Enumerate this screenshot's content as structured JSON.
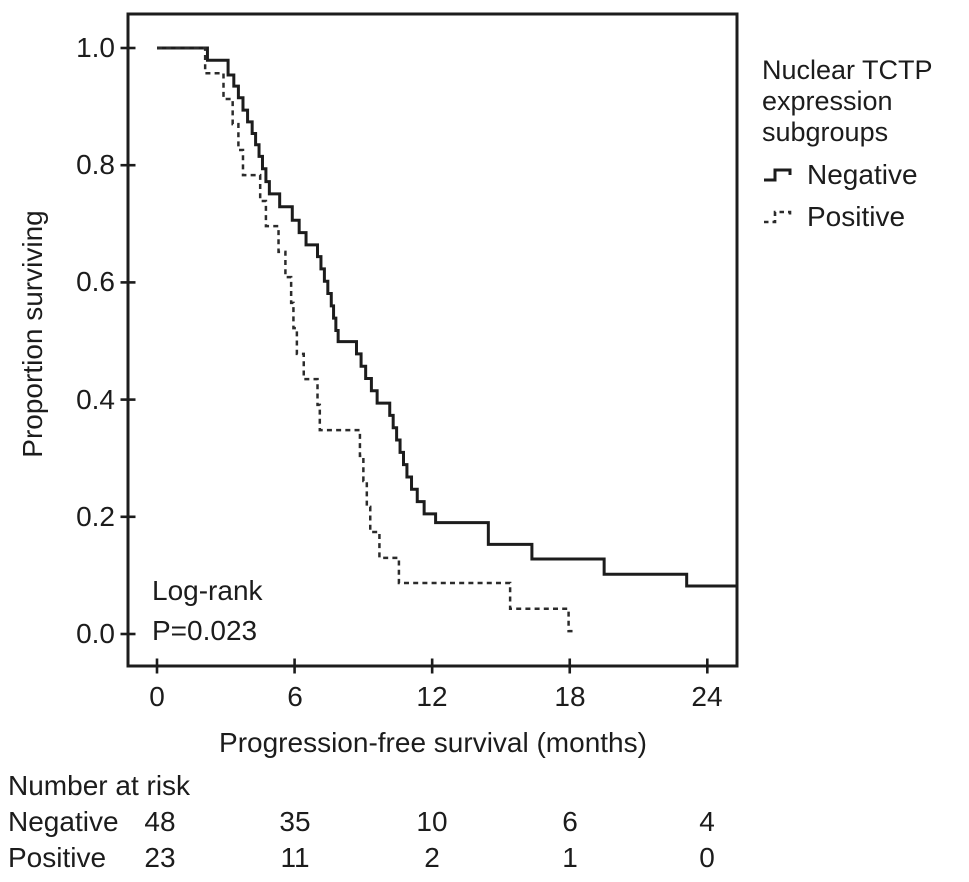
{
  "page": {
    "background": "#ffffff",
    "text_color": "#1c1c1c",
    "line_color": "#1c1c1c"
  },
  "chart_data": {
    "type": "line",
    "variant": "kaplan_meier_step",
    "xlabel": "Progression-free survival (months)",
    "ylabel": "Proportion surviving",
    "xlim": [
      0,
      24
    ],
    "ylim": [
      0.0,
      1.0
    ],
    "grid": false,
    "xticks": [
      0,
      6,
      12,
      18,
      24
    ],
    "xtick_labels": [
      "0",
      "6",
      "12",
      "18",
      "24"
    ],
    "ytick_values": [
      1.0,
      0.8,
      0.6,
      0.4,
      0.2,
      0.0
    ],
    "ytick_labels": [
      "1.0",
      "0.8",
      "0.6",
      "0.4",
      "0.2",
      "0.0"
    ],
    "annotation": {
      "line1": "Log-rank",
      "line2": "P=0.023"
    },
    "legend": {
      "position": "right-outside",
      "title_line1": "Nuclear TCTP",
      "title_line2": "expression",
      "title_line3": "subgroups",
      "entries": [
        {
          "label": "Negative",
          "line_style": "solid"
        },
        {
          "label": "Positive",
          "line_style": "dashed"
        }
      ]
    },
    "series": [
      {
        "name": "Negative",
        "line_style": "solid",
        "n": 48,
        "end_month": 25.3,
        "points": [
          [
            0,
            1.0
          ],
          [
            2.2,
            0.979
          ],
          [
            3.1,
            0.954
          ],
          [
            3.35,
            0.935
          ],
          [
            3.55,
            0.915
          ],
          [
            3.75,
            0.894
          ],
          [
            3.95,
            0.874
          ],
          [
            4.15,
            0.854
          ],
          [
            4.3,
            0.835
          ],
          [
            4.45,
            0.815
          ],
          [
            4.6,
            0.794
          ],
          [
            4.75,
            0.772
          ],
          [
            4.9,
            0.751
          ],
          [
            5.35,
            0.729
          ],
          [
            5.9,
            0.706
          ],
          [
            6.2,
            0.685
          ],
          [
            6.5,
            0.664
          ],
          [
            7.0,
            0.644
          ],
          [
            7.15,
            0.623
          ],
          [
            7.3,
            0.602
          ],
          [
            7.45,
            0.581
          ],
          [
            7.6,
            0.56
          ],
          [
            7.7,
            0.539
          ],
          [
            7.8,
            0.518
          ],
          [
            7.9,
            0.499
          ],
          [
            8.7,
            0.478
          ],
          [
            8.9,
            0.457
          ],
          [
            9.1,
            0.436
          ],
          [
            9.35,
            0.415
          ],
          [
            9.6,
            0.394
          ],
          [
            10.15,
            0.373
          ],
          [
            10.3,
            0.352
          ],
          [
            10.45,
            0.331
          ],
          [
            10.6,
            0.31
          ],
          [
            10.75,
            0.289
          ],
          [
            10.9,
            0.268
          ],
          [
            11.1,
            0.247
          ],
          [
            11.35,
            0.226
          ],
          [
            11.65,
            0.205
          ],
          [
            12.15,
            0.19
          ],
          [
            14.45,
            0.153
          ],
          [
            16.35,
            0.128
          ],
          [
            19.5,
            0.102
          ],
          [
            23.1,
            0.082
          ]
        ]
      },
      {
        "name": "Positive",
        "line_style": "dashed",
        "n": 23,
        "end_month": 18.15,
        "points": [
          [
            0,
            1.0
          ],
          [
            2.1,
            0.957
          ],
          [
            2.9,
            0.913
          ],
          [
            3.3,
            0.87
          ],
          [
            3.55,
            0.826
          ],
          [
            3.75,
            0.783
          ],
          [
            4.5,
            0.739
          ],
          [
            4.75,
            0.696
          ],
          [
            5.3,
            0.652
          ],
          [
            5.6,
            0.609
          ],
          [
            5.85,
            0.565
          ],
          [
            5.95,
            0.522
          ],
          [
            6.1,
            0.478
          ],
          [
            6.4,
            0.435
          ],
          [
            7.0,
            0.391
          ],
          [
            7.1,
            0.348
          ],
          [
            8.85,
            0.304
          ],
          [
            9.0,
            0.261
          ],
          [
            9.15,
            0.217
          ],
          [
            9.3,
            0.174
          ],
          [
            9.7,
            0.13
          ],
          [
            10.55,
            0.087
          ],
          [
            15.4,
            0.043
          ],
          [
            17.95,
            0.005
          ]
        ]
      }
    ],
    "risk_table": {
      "title": "Number at risk",
      "times": [
        0,
        6,
        12,
        18,
        24
      ],
      "rows": [
        {
          "label": "Negative",
          "values": [
            "48",
            "35",
            "10",
            "6",
            "4"
          ]
        },
        {
          "label": "Positive",
          "values": [
            "23",
            "11",
            "2",
            "1",
            "0"
          ]
        }
      ]
    }
  }
}
